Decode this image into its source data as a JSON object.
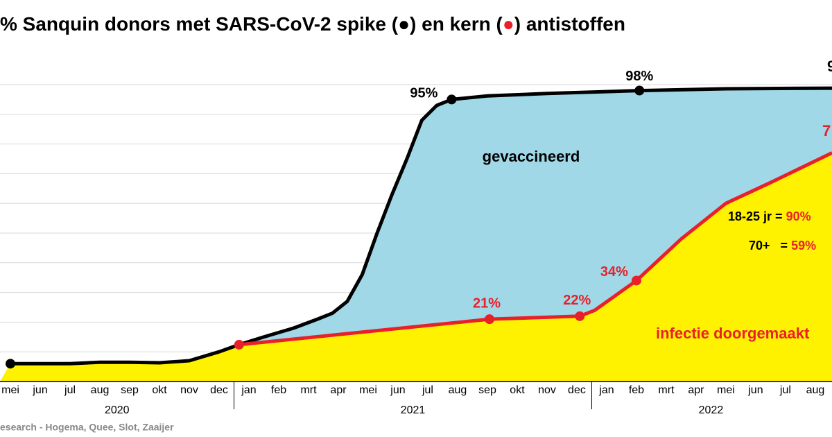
{
  "chart_data": {
    "type": "area",
    "title_parts": [
      "% Sanquin donors met SARS-CoV-2 spike (",
      "●",
      ") en kern (",
      "●",
      ") antistoffen"
    ],
    "title_colors": [
      "#000000",
      "#000000",
      "#000000",
      "#e8202a",
      "#000000"
    ],
    "categories": [
      "mei",
      "jun",
      "jul",
      "aug",
      "sep",
      "okt",
      "nov",
      "dec",
      "jan",
      "feb",
      "mrt",
      "apr",
      "mei",
      "jun",
      "jul",
      "aug",
      "sep",
      "okt",
      "nov",
      "dec",
      "jan",
      "feb",
      "mrt",
      "apr",
      "mei",
      "jun",
      "jul",
      "aug"
    ],
    "years": [
      "2020",
      "2021",
      "2022"
    ],
    "xlim": [
      -0.35,
      27.56
    ],
    "ylim": [
      0,
      100
    ],
    "yticks": [
      10,
      20,
      30,
      40,
      50,
      60,
      70,
      80,
      90,
      100
    ],
    "grid": true,
    "series": [
      {
        "color": "#000000",
        "fill": "#a0d8e8",
        "x": [
          0,
          1,
          2,
          3,
          4,
          5,
          6,
          7,
          7.67,
          8.5,
          9.5,
          10.3,
          10.8,
          11.3,
          11.8,
          12.3,
          12.8,
          13.3,
          13.8,
          14.3,
          14.8,
          16,
          18,
          21.1,
          24,
          27.56
        ],
        "values": [
          6,
          6,
          6,
          6.5,
          6.5,
          6.3,
          7,
          10,
          12.4,
          15,
          18,
          21,
          23,
          27,
          36,
          50,
          63,
          75,
          88,
          93,
          95,
          96.2,
          97,
          98,
          98.6,
          98.8
        ],
        "points": {
          "x": [
            0,
            14.8,
            21.1
          ],
          "values": [
            6,
            95,
            98
          ],
          "value_labels": [
            null,
            "95%",
            "98%"
          ]
        }
      },
      {
        "color": "#e8202a",
        "fill": "#fff200",
        "x": [
          7.67,
          16.07,
          19.1,
          19.6,
          21.0,
          22.5,
          24,
          25.5,
          27.56
        ],
        "values": [
          12.4,
          21,
          22,
          24,
          34,
          48,
          60,
          67,
          77
        ],
        "points": {
          "x": [
            7.67,
            16.07,
            19.1,
            21.0
          ],
          "values": [
            12.4,
            21,
            22,
            34
          ],
          "value_labels": [
            null,
            "21%",
            "22%",
            "34%"
          ]
        }
      }
    ],
    "annotations": [
      {
        "parts": [
          "gevaccineerd"
        ],
        "colors": [
          "#000000"
        ]
      },
      {
        "parts": [
          "infectie doorgemaakt"
        ],
        "colors": [
          "#e8202a"
        ]
      },
      {
        "parts": [
          "18-25 jr = ",
          "90%"
        ],
        "colors": [
          "#000000",
          "#e8202a"
        ]
      },
      {
        "parts": [
          "70+   = ",
          "59%"
        ],
        "colors": [
          "#000000",
          "#e8202a"
        ]
      },
      {
        "parts": [
          "9"
        ],
        "colors": [
          "#000000"
        ]
      },
      {
        "parts": [
          "7"
        ],
        "colors": [
          "#e8202a"
        ]
      }
    ],
    "source": "esearch - Hogema, Quee, Slot, Zaaijer"
  }
}
